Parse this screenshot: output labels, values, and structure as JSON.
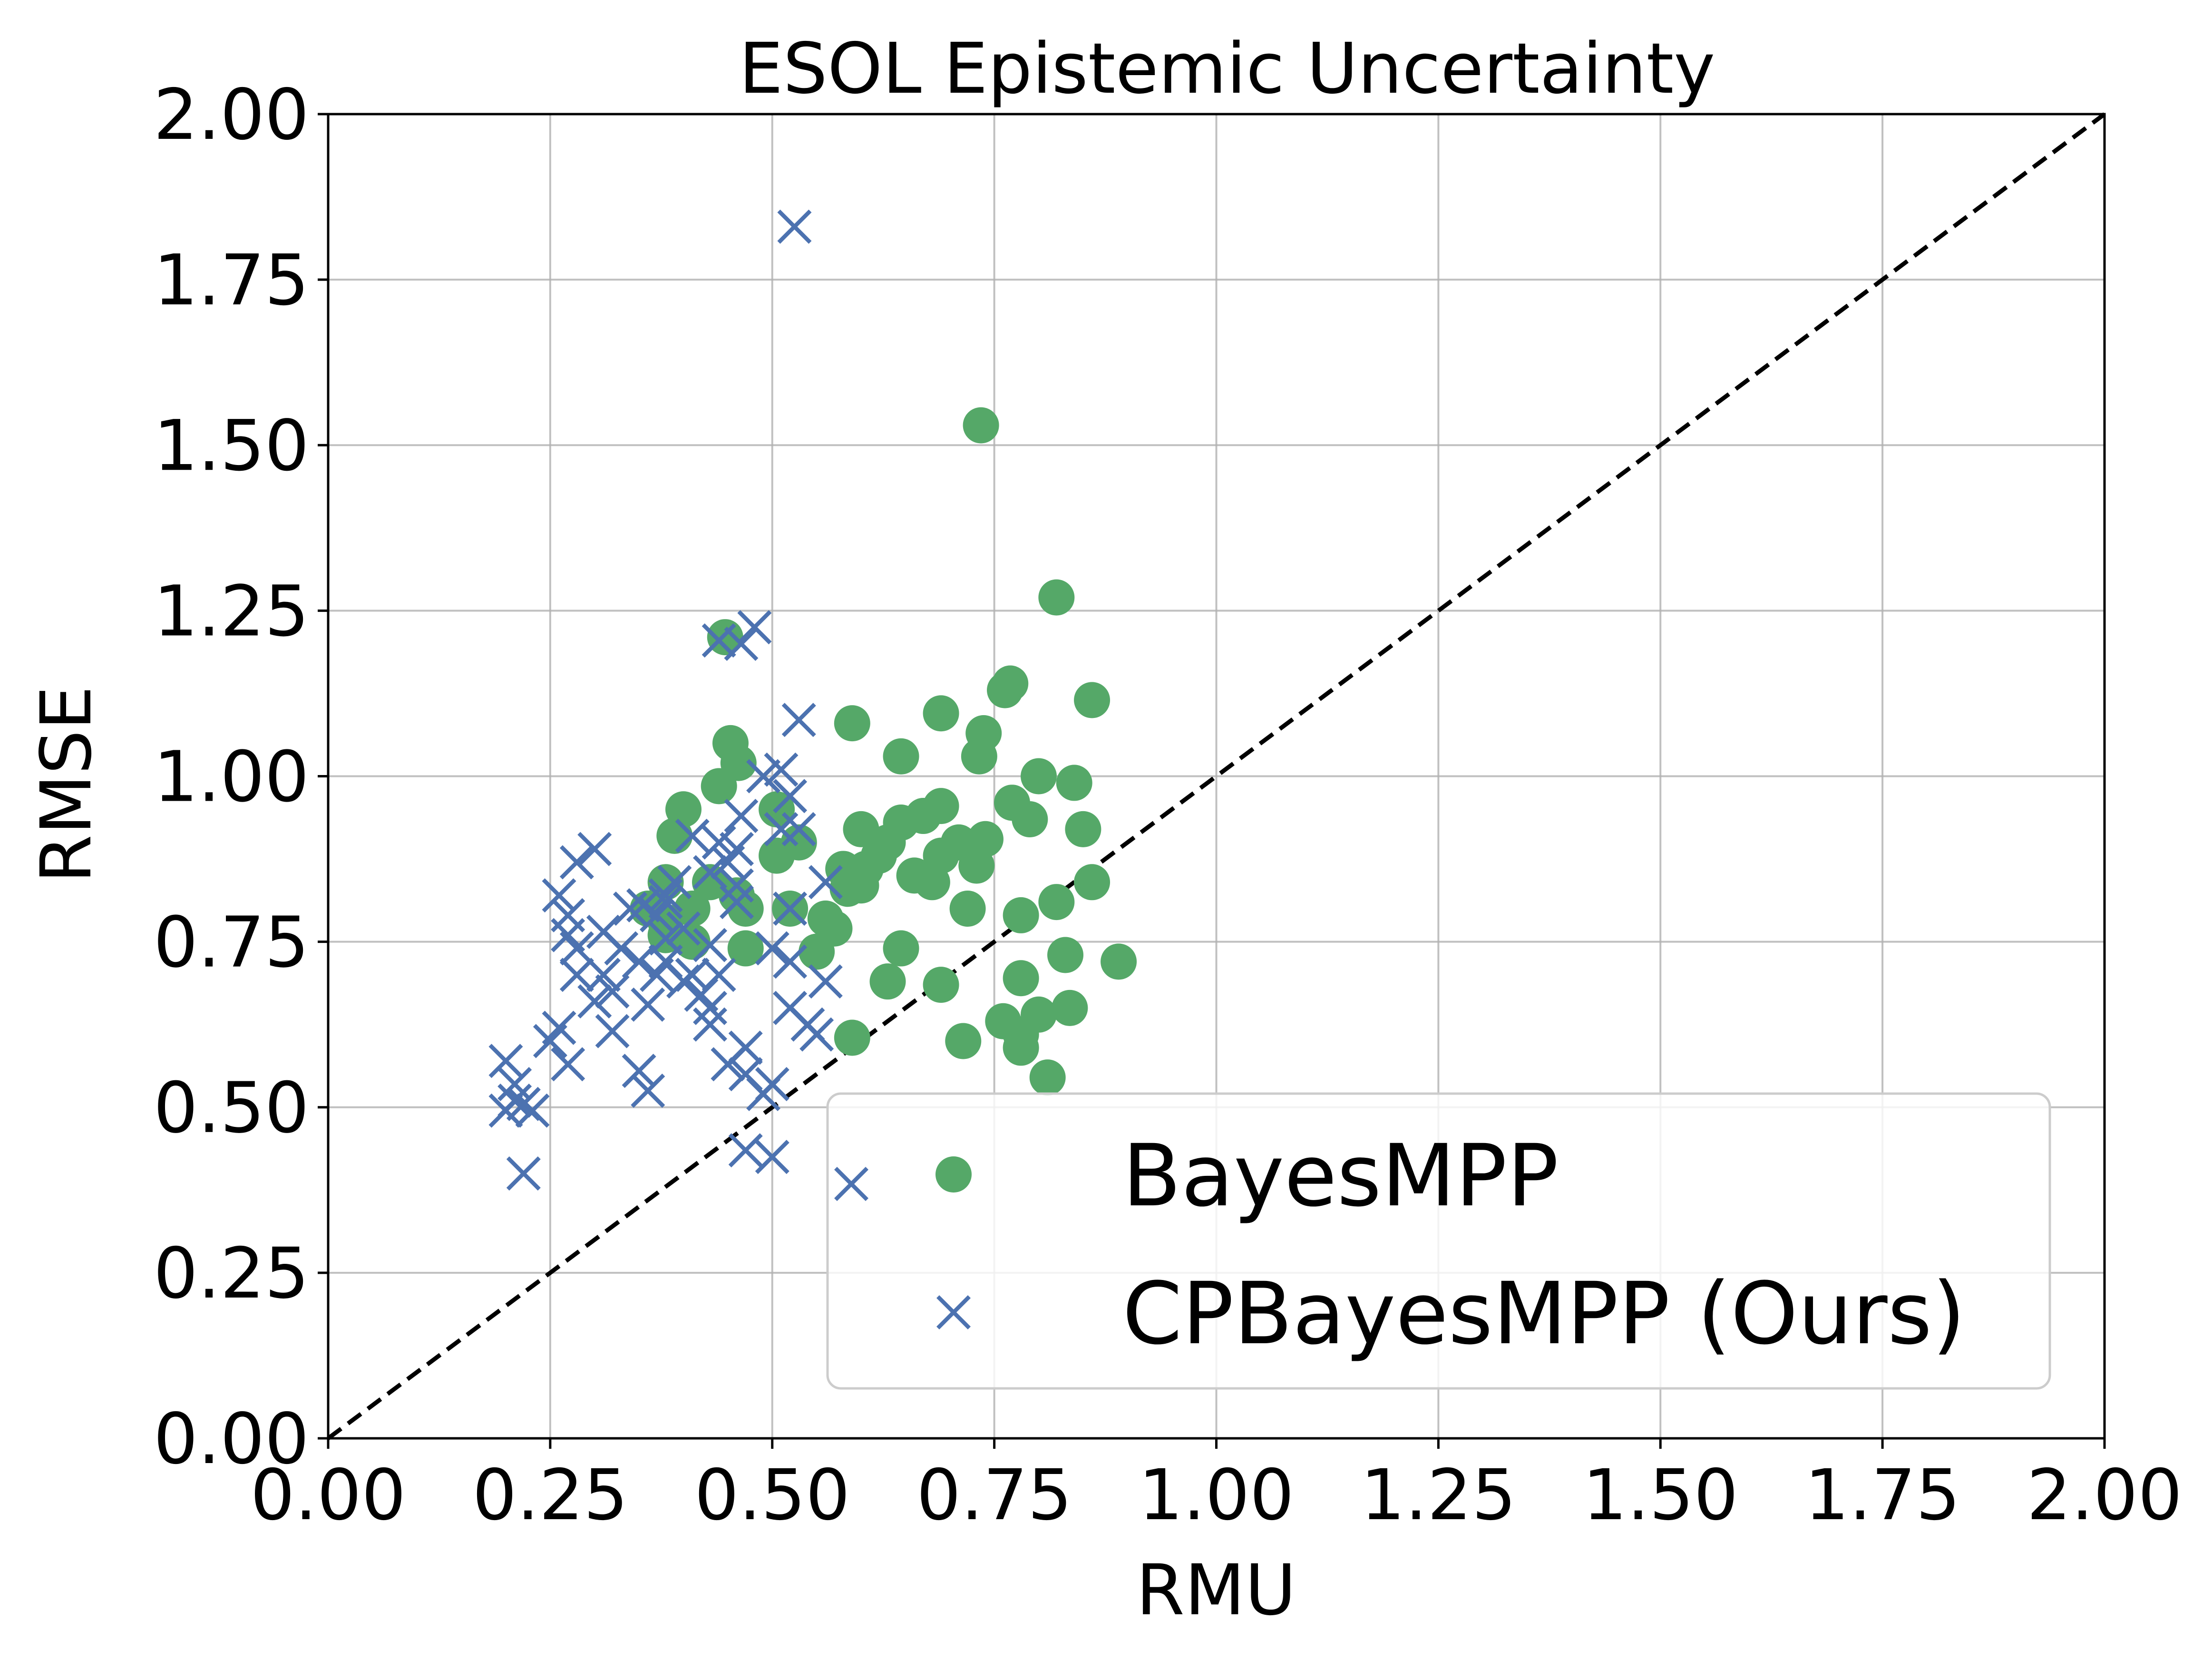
{
  "chart_data": {
    "type": "scatter",
    "title": "ESOL Epistemic Uncertainty",
    "xlabel": "RMU",
    "ylabel": "RMSE",
    "xlim": [
      0,
      2
    ],
    "ylim": [
      0,
      2
    ],
    "xticks": [
      "0.00",
      "0.25",
      "0.50",
      "0.75",
      "1.00",
      "1.25",
      "1.50",
      "1.75",
      "2.00"
    ],
    "yticks": [
      "0.00",
      "0.25",
      "0.50",
      "0.75",
      "1.00",
      "1.25",
      "1.50",
      "1.75",
      "2.00"
    ],
    "grid": true,
    "legend_position": "lower-right",
    "reference_line": {
      "style": "dashed",
      "color": "#000000",
      "from": [
        0,
        0
      ],
      "to": [
        2,
        2
      ]
    },
    "series": [
      {
        "name": "BayesMPP",
        "marker": "circle",
        "color": "#55a868",
        "points": [
          [
            0.735,
            1.53
          ],
          [
            0.82,
            1.27
          ],
          [
            0.447,
            1.21
          ],
          [
            0.768,
            1.14
          ],
          [
            0.86,
            1.115
          ],
          [
            0.762,
            1.13
          ],
          [
            0.59,
            1.08
          ],
          [
            0.69,
            1.095
          ],
          [
            0.738,
            1.065
          ],
          [
            0.453,
            1.05
          ],
          [
            0.645,
            1.03
          ],
          [
            0.733,
            1.03
          ],
          [
            0.462,
            1.02
          ],
          [
            0.44,
            0.985
          ],
          [
            0.8,
            1.0
          ],
          [
            0.84,
            0.99
          ],
          [
            0.505,
            0.95
          ],
          [
            0.4,
            0.95
          ],
          [
            0.77,
            0.96
          ],
          [
            0.69,
            0.955
          ],
          [
            0.67,
            0.94
          ],
          [
            0.79,
            0.935
          ],
          [
            0.645,
            0.93
          ],
          [
            0.85,
            0.92
          ],
          [
            0.6,
            0.92
          ],
          [
            0.39,
            0.91
          ],
          [
            0.53,
            0.9
          ],
          [
            0.63,
            0.9
          ],
          [
            0.71,
            0.9
          ],
          [
            0.74,
            0.905
          ],
          [
            0.58,
            0.86
          ],
          [
            0.62,
            0.88
          ],
          [
            0.69,
            0.88
          ],
          [
            0.505,
            0.88
          ],
          [
            0.605,
            0.86
          ],
          [
            0.66,
            0.85
          ],
          [
            0.73,
            0.865
          ],
          [
            0.43,
            0.84
          ],
          [
            0.38,
            0.84
          ],
          [
            0.68,
            0.84
          ],
          [
            0.585,
            0.83
          ],
          [
            0.86,
            0.84
          ],
          [
            0.47,
            0.8
          ],
          [
            0.6,
            0.835
          ],
          [
            0.52,
            0.8
          ],
          [
            0.56,
            0.785
          ],
          [
            0.36,
            0.8
          ],
          [
            0.72,
            0.8
          ],
          [
            0.78,
            0.79
          ],
          [
            0.82,
            0.81
          ],
          [
            0.46,
            0.82
          ],
          [
            0.38,
            0.78
          ],
          [
            0.57,
            0.77
          ],
          [
            0.41,
            0.75
          ],
          [
            0.47,
            0.74
          ],
          [
            0.645,
            0.74
          ],
          [
            0.55,
            0.735
          ],
          [
            0.83,
            0.73
          ],
          [
            0.89,
            0.72
          ],
          [
            0.63,
            0.69
          ],
          [
            0.78,
            0.695
          ],
          [
            0.69,
            0.685
          ],
          [
            0.835,
            0.65
          ],
          [
            0.8,
            0.64
          ],
          [
            0.76,
            0.63
          ],
          [
            0.78,
            0.61
          ],
          [
            0.59,
            0.605
          ],
          [
            0.715,
            0.6
          ],
          [
            0.78,
            0.59
          ],
          [
            0.81,
            0.545
          ],
          [
            0.38,
            0.76
          ],
          [
            0.41,
            0.8
          ]
        ]
      },
      {
        "name": "CPBayesMPP (Ours)",
        "marker": "x",
        "color": "#4c72b0",
        "points": [
          [
            0.525,
            1.83
          ],
          [
            0.48,
            1.225
          ],
          [
            0.44,
            1.205
          ],
          [
            0.465,
            1.2
          ],
          [
            0.53,
            1.085
          ],
          [
            0.51,
            1.01
          ],
          [
            0.49,
            1.0
          ],
          [
            0.52,
            0.97
          ],
          [
            0.465,
            0.94
          ],
          [
            0.51,
            0.92
          ],
          [
            0.53,
            0.92
          ],
          [
            0.41,
            0.91
          ],
          [
            0.3,
            0.89
          ],
          [
            0.44,
            0.9
          ],
          [
            0.46,
            0.89
          ],
          [
            0.28,
            0.87
          ],
          [
            0.45,
            0.87
          ],
          [
            0.43,
            0.855
          ],
          [
            0.39,
            0.84
          ],
          [
            0.46,
            0.835
          ],
          [
            0.56,
            0.84
          ],
          [
            0.26,
            0.82
          ],
          [
            0.34,
            0.8
          ],
          [
            0.38,
            0.82
          ],
          [
            0.46,
            0.81
          ],
          [
            0.27,
            0.79
          ],
          [
            0.37,
            0.79
          ],
          [
            0.355,
            0.805
          ],
          [
            0.52,
            0.8
          ],
          [
            0.4,
            0.77
          ],
          [
            0.27,
            0.76
          ],
          [
            0.31,
            0.765
          ],
          [
            0.38,
            0.755
          ],
          [
            0.43,
            0.745
          ],
          [
            0.28,
            0.74
          ],
          [
            0.33,
            0.74
          ],
          [
            0.5,
            0.74
          ],
          [
            0.38,
            0.72
          ],
          [
            0.37,
            0.7
          ],
          [
            0.41,
            0.7
          ],
          [
            0.52,
            0.72
          ],
          [
            0.28,
            0.7
          ],
          [
            0.31,
            0.7
          ],
          [
            0.4,
            0.69
          ],
          [
            0.44,
            0.7
          ],
          [
            0.56,
            0.69
          ],
          [
            0.32,
            0.675
          ],
          [
            0.42,
            0.67
          ],
          [
            0.3,
            0.66
          ],
          [
            0.36,
            0.655
          ],
          [
            0.43,
            0.65
          ],
          [
            0.52,
            0.65
          ],
          [
            0.26,
            0.62
          ],
          [
            0.32,
            0.615
          ],
          [
            0.43,
            0.625
          ],
          [
            0.54,
            0.625
          ],
          [
            0.55,
            0.61
          ],
          [
            0.47,
            0.59
          ],
          [
            0.2,
            0.57
          ],
          [
            0.27,
            0.565
          ],
          [
            0.45,
            0.565
          ],
          [
            0.47,
            0.55
          ],
          [
            0.35,
            0.555
          ],
          [
            0.21,
            0.535
          ],
          [
            0.5,
            0.535
          ],
          [
            0.49,
            0.52
          ],
          [
            0.36,
            0.525
          ],
          [
            0.21,
            0.51
          ],
          [
            0.22,
            0.505
          ],
          [
            0.2,
            0.495
          ],
          [
            0.23,
            0.495
          ],
          [
            0.47,
            0.435
          ],
          [
            0.5,
            0.425
          ],
          [
            0.22,
            0.4
          ],
          [
            0.38,
            0.81
          ],
          [
            0.35,
            0.72
          ],
          [
            0.25,
            0.6
          ]
        ]
      }
    ]
  }
}
